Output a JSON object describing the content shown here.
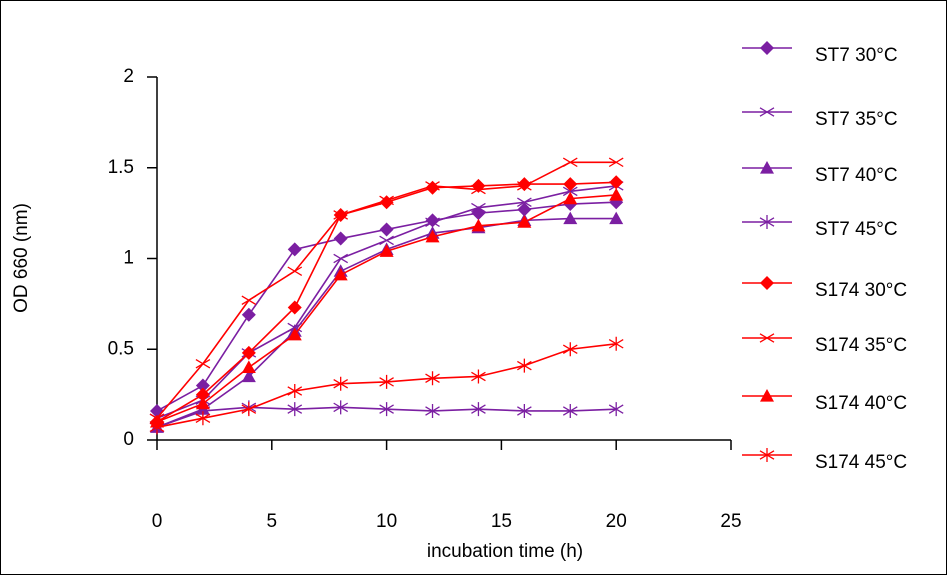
{
  "chart_data": {
    "type": "line",
    "xlabel": "incubation time (h)",
    "ylabel": "OD 660 (nm)",
    "x": [
      0,
      2,
      4,
      6,
      8,
      10,
      12,
      14,
      16,
      18,
      20
    ],
    "xlim": [
      0,
      25
    ],
    "xticks": [
      0,
      5,
      10,
      15,
      20,
      25
    ],
    "ylim": [
      0,
      2
    ],
    "yticks": [
      0,
      0.5,
      1,
      1.5,
      2
    ],
    "series": [
      {
        "name": "ST7 30°C",
        "color": "#7b1fa2",
        "marker": "diamond",
        "values": [
          0.16,
          0.3,
          0.69,
          1.05,
          1.11,
          1.16,
          1.21,
          1.25,
          1.27,
          1.3,
          1.31
        ]
      },
      {
        "name": "ST7 35°C",
        "color": "#7b1fa2",
        "marker": "x",
        "values": [
          0.12,
          0.22,
          0.48,
          0.62,
          1.0,
          1.1,
          1.2,
          1.28,
          1.31,
          1.37,
          1.4
        ]
      },
      {
        "name": "ST7 40°C",
        "color": "#7b1fa2",
        "marker": "triangle",
        "values": [
          0.07,
          0.17,
          0.35,
          0.6,
          0.93,
          1.05,
          1.14,
          1.17,
          1.21,
          1.22,
          1.22
        ]
      },
      {
        "name": "ST7 45°C",
        "color": "#7b1fa2",
        "marker": "asterisk",
        "values": [
          0.07,
          0.16,
          0.18,
          0.17,
          0.18,
          0.17,
          0.16,
          0.17,
          0.16,
          0.16,
          0.17
        ]
      },
      {
        "name": "S174 30°C",
        "color": "#ff0000",
        "marker": "diamond",
        "values": [
          0.1,
          0.25,
          0.48,
          0.73,
          1.24,
          1.31,
          1.39,
          1.4,
          1.41,
          1.41,
          1.42
        ]
      },
      {
        "name": "S174 35°C",
        "color": "#ff0000",
        "marker": "x",
        "values": [
          0.12,
          0.42,
          0.77,
          0.93,
          1.24,
          1.32,
          1.4,
          1.38,
          1.4,
          1.53,
          1.53
        ]
      },
      {
        "name": "S174 40°C",
        "color": "#ff0000",
        "marker": "triangle",
        "values": [
          0.1,
          0.2,
          0.4,
          0.58,
          0.91,
          1.04,
          1.12,
          1.18,
          1.2,
          1.33,
          1.35
        ]
      },
      {
        "name": "S174 45°C",
        "color": "#ff0000",
        "marker": "asterisk",
        "values": [
          0.07,
          0.12,
          0.17,
          0.27,
          0.31,
          0.32,
          0.34,
          0.35,
          0.41,
          0.5,
          0.53
        ]
      }
    ]
  }
}
